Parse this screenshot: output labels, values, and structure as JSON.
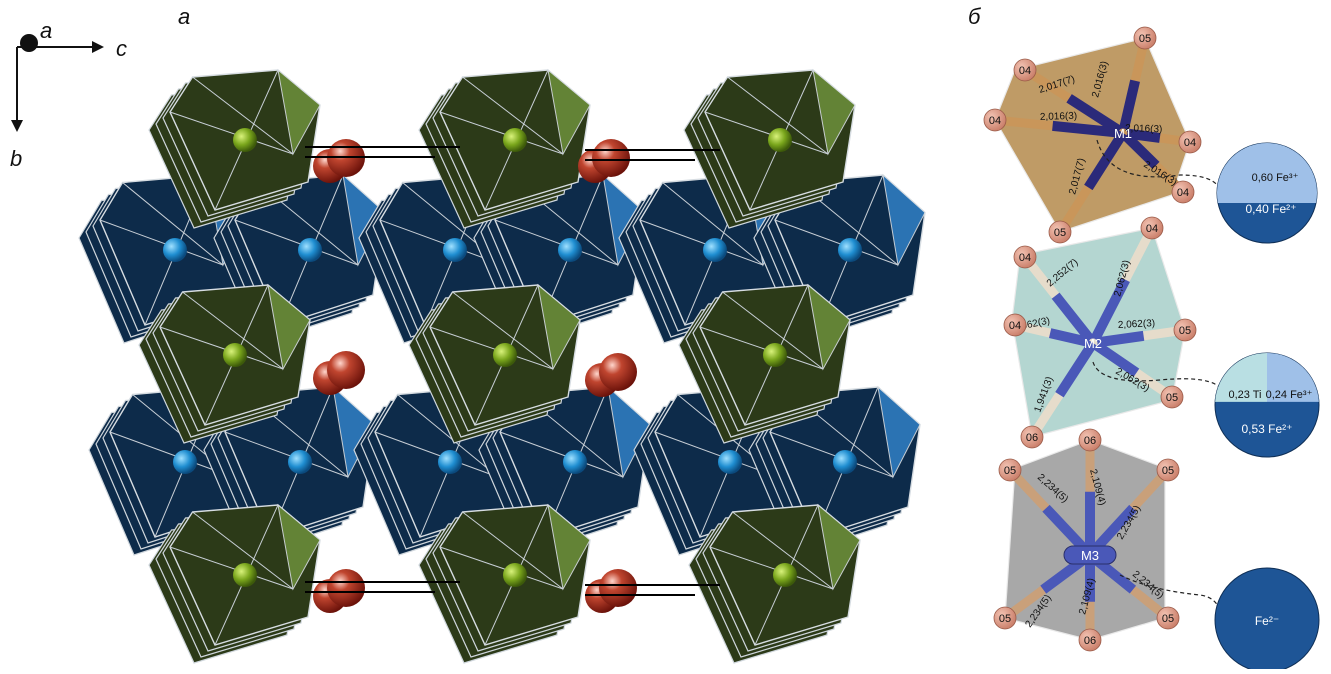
{
  "panels": {
    "left": "а",
    "right": "б"
  },
  "axes": {
    "a": "a",
    "b": "b",
    "c": "c"
  },
  "colors": {
    "green_poly": "#2c3a18",
    "green_edge": "#6a8b3a",
    "blue_poly": "#0d2b4a",
    "blue_edge": "#2f7bbf",
    "oxygen": "#9e2418",
    "m1_poly": "#b58a4c",
    "m2_poly": "#a7cfc9",
    "m3_poly": "#9a9a9a",
    "bond_m1": "#2b2a7a",
    "bond_m2": "#4a58b8",
    "pie_dark": "#1e5596",
    "pie_light": "#9fc0e8",
    "pie_ti": "#b9dfe3"
  },
  "m1": {
    "site": "M1",
    "oxygens": [
      "05",
      "04",
      "04",
      "04",
      "04",
      "05"
    ],
    "bonds": [
      "2,016(3)",
      "2,017(7)",
      "2,016(3)",
      "2,016(3)",
      "2,016(3)",
      "2,017(7)"
    ],
    "occupancy": [
      {
        "label": "0,60 Fe³⁺",
        "value": 0.6
      },
      {
        "label": "0,40 Fe²⁺",
        "value": 0.4
      }
    ]
  },
  "m2": {
    "site": "M2",
    "oxygens": [
      "04",
      "04",
      "04",
      "05",
      "05",
      "06"
    ],
    "bonds": [
      "2,062(3)",
      "2,252(7)",
      "2,062(3)",
      "2,062(3)",
      "2,062(3)",
      "1,941(3)"
    ],
    "occupancy": [
      {
        "label": "0,23 Ti",
        "value": 0.23
      },
      {
        "label": "0,24 Fe³⁺",
        "value": 0.24
      },
      {
        "label": "0,53 Fe²⁺",
        "value": 0.53
      }
    ]
  },
  "m3": {
    "site": "M3",
    "oxygens": [
      "06",
      "05",
      "05",
      "05",
      "06",
      "05"
    ],
    "bonds": [
      "2,109(4)",
      "2,234(5)",
      "2,234(5)",
      "2,234(5)",
      "2,109(4)",
      "2,234(5)"
    ],
    "occupancy": [
      {
        "label": "Fe²⁻",
        "value": 1.0
      }
    ]
  }
}
